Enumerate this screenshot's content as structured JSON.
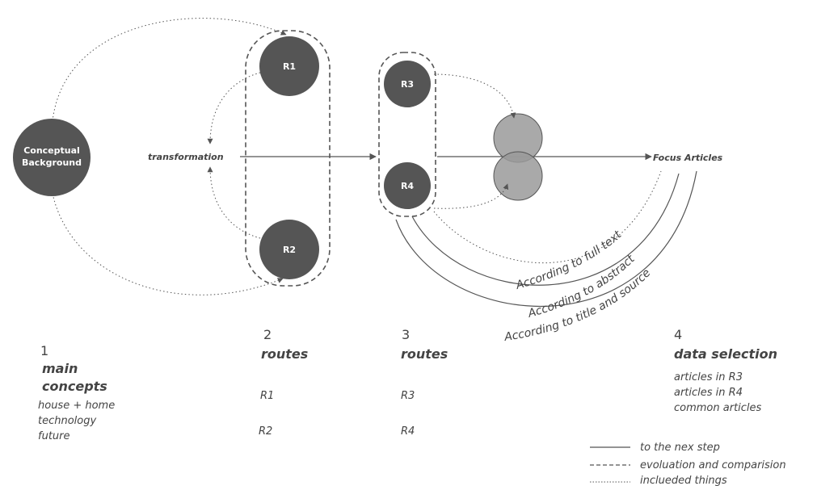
{
  "nodes": {
    "conceptual_background": {
      "line1": "Conceptual",
      "line2": "Background"
    },
    "r1": "R1",
    "r2": "R2",
    "r3": "R3",
    "r4": "R4"
  },
  "labels": {
    "transformation": "transformation",
    "focus_articles": "Focus Articles",
    "arc_full_text": "According to full text",
    "arc_abstract": "According to abstract",
    "arc_title_source": "According to title and source"
  },
  "columns": [
    {
      "number": "1",
      "heading_line1": "main",
      "heading_line2": "concepts",
      "items": [
        "house + home",
        "technology",
        "future"
      ]
    },
    {
      "number": "2",
      "heading": "routes",
      "items": [
        "R1",
        "R2"
      ]
    },
    {
      "number": "3",
      "heading": "routes",
      "items": [
        "R3",
        "R4"
      ]
    },
    {
      "number": "4",
      "heading": "data selection",
      "items": [
        "articles in R3",
        "articles in R4",
        "common articles"
      ]
    }
  ],
  "legend": [
    {
      "style": "solid",
      "label": "to the nex step"
    },
    {
      "style": "dashed",
      "label": "evoluation and comparision"
    },
    {
      "style": "dotted",
      "label": "inclueded things"
    }
  ],
  "colors": {
    "node_fill": "#555555",
    "venn_fill": "#9a9a9a",
    "line": "#555555",
    "text": "#444444"
  }
}
